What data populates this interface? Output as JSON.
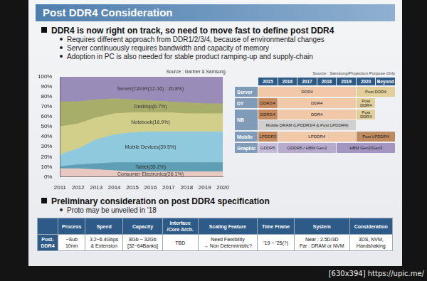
{
  "title": "Post DDR4 Consideration",
  "bullets": [
    {
      "text": "DDR4 is now right on track, so need to move fast to define post DDR4",
      "sub": [
        "Requires different approach from DDR1/2/3/4, because of environmental changes",
        "Server continuously requires bandwidth and capacity of memory",
        "Adoption in PC is also needed for stable product ramping-up and supply-chain"
      ]
    }
  ],
  "chart_data": {
    "type": "area",
    "stacked": true,
    "grid": false,
    "annotations": [
      "Source : Gartner & Samsung"
    ],
    "categories": [
      "2011",
      "2012",
      "2013",
      "2014",
      "2015",
      "2016",
      "2017",
      "2018",
      "2019",
      "2020"
    ],
    "series": [
      {
        "name": "Consumer Electronics(26.1%)",
        "color": "#e8c8c0",
        "values": [
          8,
          8,
          7,
          6,
          5,
          5,
          5,
          5,
          5,
          5
        ]
      },
      {
        "name": "Tablet(35.2%)",
        "color": "#5e9fb5",
        "values": [
          2,
          4,
          6,
          8,
          9,
          9,
          9,
          9,
          9,
          9
        ]
      },
      {
        "name": "Mobile Devices(39.5%)",
        "color": "#8fc9de",
        "values": [
          12,
          16,
          24,
          28,
          30,
          31,
          31,
          31,
          31,
          31
        ]
      },
      {
        "name": "Notebook(16.9%)",
        "color": "#d2cf8a",
        "values": [
          28,
          25,
          22,
          21,
          20,
          19,
          19,
          18,
          18,
          18
        ]
      },
      {
        "name": "Desktop(6.7%)",
        "color": "#a9ad6a",
        "values": [
          25,
          22,
          18,
          15,
          13,
          12,
          11,
          11,
          10,
          10
        ]
      },
      {
        "name": "Server(CAGR(12-16) : 20.8%)",
        "color": "#9a8cb8",
        "values": [
          25,
          25,
          23,
          22,
          23,
          24,
          25,
          26,
          27,
          27
        ]
      }
    ],
    "ylim": [
      0,
      100
    ],
    "yticks": [
      {
        "value": 0,
        "label": "0%"
      },
      {
        "value": 10,
        "label": "10%"
      },
      {
        "value": 20,
        "label": "20%"
      },
      {
        "value": 30,
        "label": "30%"
      },
      {
        "value": 40,
        "label": "40%"
      },
      {
        "value": 50,
        "label": "50%"
      },
      {
        "value": 60,
        "label": "60%"
      },
      {
        "value": 70,
        "label": "70%"
      },
      {
        "value": 80,
        "label": "80%"
      },
      {
        "value": 90,
        "label": "90%"
      },
      {
        "value": 100,
        "label": "100%"
      }
    ]
  },
  "roadmap": {
    "annotations": [
      "Source : Samsung/Projection Purpose Only"
    ],
    "columns": [
      "2015",
      "2016",
      "2017",
      "2018",
      "2019",
      "2020",
      "Beyond"
    ],
    "rows": [
      {
        "name": "Server",
        "lanes": [
          [
            {
              "label": "DDR4",
              "from": "2015",
              "to": "2019",
              "color": "#f2c9a8"
            },
            {
              "label": "Post DDR4",
              "from": "2020",
              "to": "Beyond",
              "color": "#e3cf9a"
            }
          ]
        ]
      },
      {
        "name": "DT",
        "lanes": [
          [
            {
              "label": "DDR3/4",
              "from": "2015",
              "to": "2015",
              "color": "#c98b5e"
            },
            {
              "label": "DDR4",
              "from": "2016",
              "to": "2019",
              "color": "#f2c9a8"
            },
            {
              "label": "Post DDR4",
              "from": "2020",
              "to": "2020",
              "color": "#e3cf9a"
            }
          ]
        ]
      },
      {
        "name": "NB",
        "lanes": [
          [
            {
              "label": "DDR3/4",
              "from": "2015",
              "to": "2015",
              "color": "#c98b5e"
            },
            {
              "label": "DDR4",
              "from": "2016",
              "to": "2019",
              "color": "#f2c9a8"
            },
            {
              "label": "Post DDR4",
              "from": "2020",
              "to": "2020",
              "color": "#e3cf9a"
            }
          ],
          [
            {
              "label": "Mobile DRAM (LPDDR3/4 & Post LPDDR4)",
              "from": "2015",
              "to": "2019",
              "color": "#cfcfcf"
            }
          ]
        ]
      },
      {
        "name": "Mobile",
        "lanes": [
          [
            {
              "label": "LPDDR3",
              "from": "2015",
              "to": "2015",
              "color": "#c98b5e"
            },
            {
              "label": "LPDDR4",
              "from": "2016",
              "to": "2019",
              "color": "#f2c9a8"
            },
            {
              "label": "Post LPDDR4",
              "from": "2020",
              "to": "Beyond",
              "color": "#c08a60"
            }
          ]
        ]
      },
      {
        "name": "Graphic",
        "lanes": [
          [
            {
              "label": "GDDR5",
              "from": "2015",
              "to": "2015",
              "color": "#c4bcd8"
            },
            {
              "label": "GDDR5 / HBM Gen2",
              "from": "2016",
              "to": "2018",
              "color": "#b6aacd"
            },
            {
              "label": "HBM Gen2/Gen3",
              "from": "2019",
              "to": "Beyond",
              "color": "#a394c2"
            }
          ]
        ]
      }
    ]
  },
  "section2": {
    "text": "Preliminary consideration on post DDR4 specification",
    "sub": [
      "Proto may be unveiled in '18"
    ]
  },
  "table": {
    "columns": [
      [
        "Process"
      ],
      [
        "Speed"
      ],
      [
        "Capacity"
      ],
      [
        "Interface",
        "/Core Arch."
      ],
      [
        "Scaling Feature"
      ],
      [
        "Time Frame"
      ],
      [
        "System"
      ],
      [
        "Consideration"
      ]
    ],
    "rows": [
      {
        "label": [
          "Post-",
          "DDR4"
        ],
        "cells": [
          [
            "~Sub",
            "10nm"
          ],
          [
            "3.2~6.4Gbps",
            "& Extension"
          ],
          [
            "8Gb ~ 32Gb",
            "[32~64Banks]"
          ],
          [
            "TBD"
          ],
          [
            "Need Flexibility",
            "→ Non Deterministic?"
          ],
          [
            "'19 ~ '25(?)"
          ],
          [
            "Near : 2.5D/3D",
            "Far : DRAM or NVM"
          ],
          [
            "3DS, NVM,",
            "Handshaking"
          ]
        ]
      }
    ]
  },
  "watermark": "[630x394] https://upic.me/"
}
